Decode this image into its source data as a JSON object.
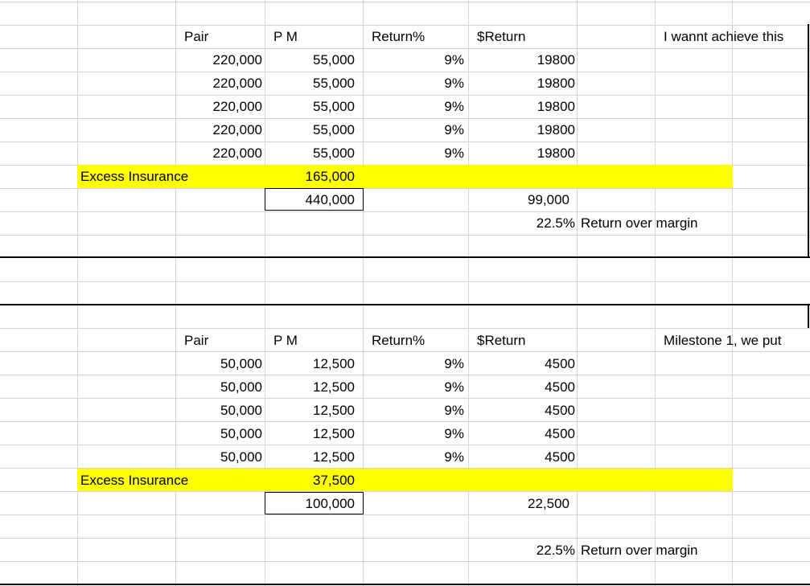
{
  "block1": {
    "headers": {
      "pair": "Pair",
      "pm": "P M",
      "return_pct": "Return%",
      "return_dollar": "$Return",
      "note": "I wannt achieve this"
    },
    "rows": [
      {
        "pair": "220,000",
        "pm": "55,000",
        "pct": "9%",
        "ret": "19800"
      },
      {
        "pair": "220,000",
        "pm": "55,000",
        "pct": "9%",
        "ret": "19800"
      },
      {
        "pair": "220,000",
        "pm": "55,000",
        "pct": "9%",
        "ret": "19800"
      },
      {
        "pair": "220,000",
        "pm": "55,000",
        "pct": "9%",
        "ret": "19800"
      },
      {
        "pair": "220,000",
        "pm": "55,000",
        "pct": "9%",
        "ret": "19800"
      }
    ],
    "excess_label": "Excess Insurance",
    "excess_value": "165,000",
    "total_pm": "440,000",
    "total_return": "99,000",
    "ratio": "22.5%",
    "ratio_label": "Return over margin"
  },
  "block2": {
    "headers": {
      "pair": "Pair",
      "pm": "P M",
      "return_pct": "Return%",
      "return_dollar": "$Return",
      "note": "Milestone 1, we put"
    },
    "rows": [
      {
        "pair": "50,000",
        "pm": "12,500",
        "pct": "9%",
        "ret": "4500"
      },
      {
        "pair": "50,000",
        "pm": "12,500",
        "pct": "9%",
        "ret": "4500"
      },
      {
        "pair": "50,000",
        "pm": "12,500",
        "pct": "9%",
        "ret": "4500"
      },
      {
        "pair": "50,000",
        "pm": "12,500",
        "pct": "9%",
        "ret": "4500"
      },
      {
        "pair": "50,000",
        "pm": "12,500",
        "pct": "9%",
        "ret": "4500"
      }
    ],
    "excess_label": "Excess Insurance",
    "excess_value": "37,500",
    "total_pm": "100,000",
    "total_return": "22,500",
    "ratio": "22.5%",
    "ratio_label": "Return over margin"
  },
  "colors": {
    "highlight": "#ffff00",
    "gridline": "#d4d4d4",
    "border": "#000000"
  }
}
